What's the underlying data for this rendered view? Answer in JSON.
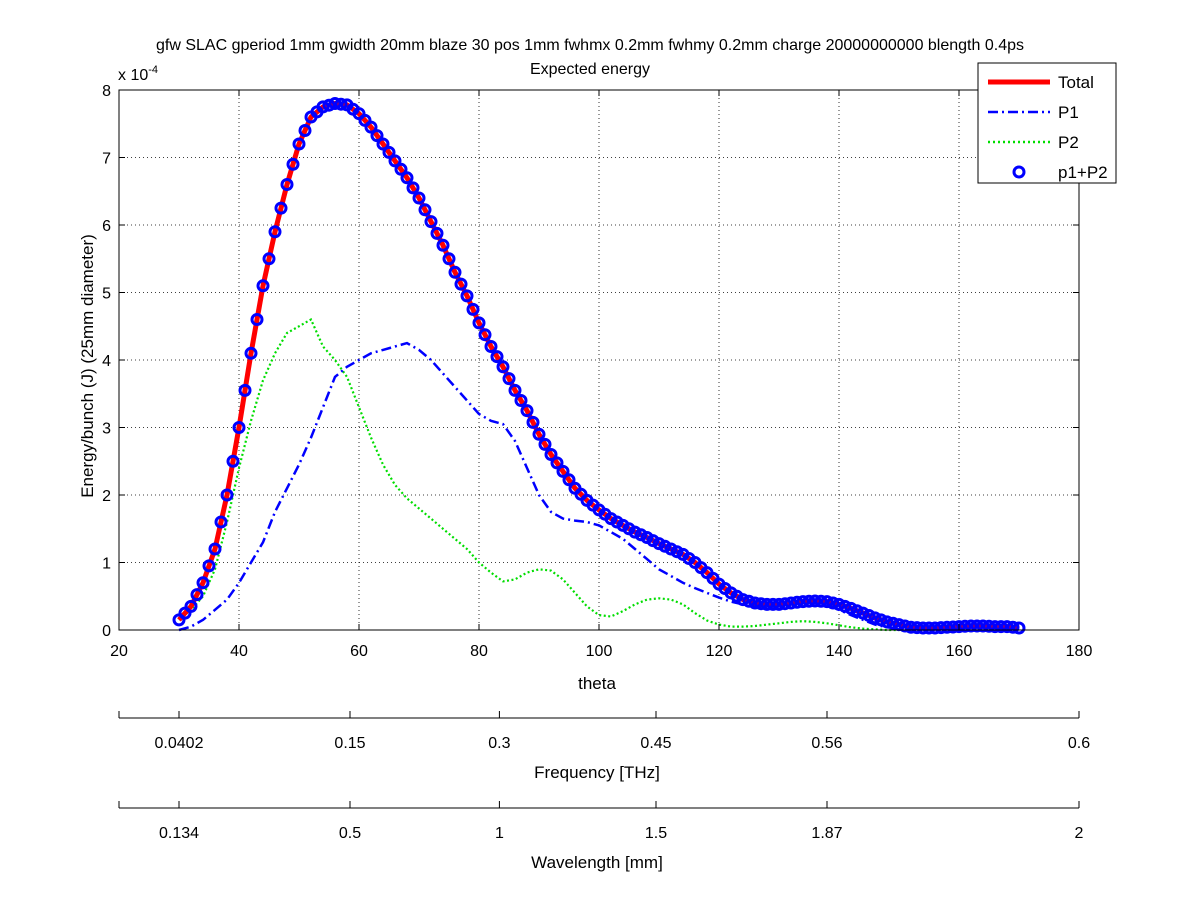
{
  "chart_data": {
    "type": "line",
    "title": "gfw SLAC gperiod 1mm gwidth 20mm blaze 30 pos 1mm fwhmx 0.2mm fwhmy 0.2mm charge 20000000000 blength 0.4ps",
    "subtitle": "Expected energy",
    "xlabel": "theta",
    "ylabel": "Energy/bunch (J) (25mm diameter)",
    "y_exponent_label": "x 10",
    "y_exponent_power": "-4",
    "xlim": [
      20,
      180
    ],
    "ylim": [
      0,
      8
    ],
    "y_scale": 0.0001,
    "grid": true,
    "legend_position": "top-right",
    "x_ticks": [
      20,
      40,
      60,
      80,
      100,
      120,
      140,
      160,
      180
    ],
    "y_ticks": [
      0,
      1,
      2,
      3,
      4,
      5,
      6,
      7,
      8
    ],
    "x_tick_labels": [
      "20",
      "40",
      "60",
      "80",
      "100",
      "120",
      "140",
      "160",
      "180"
    ],
    "y_tick_labels": [
      "0",
      "1",
      "2",
      "3",
      "4",
      "5",
      "6",
      "7",
      "8"
    ],
    "series": [
      {
        "name": "Total",
        "color": "#ff0000",
        "style": "solid",
        "x": [
          30,
          32,
          34,
          36,
          38,
          40,
          42,
          44,
          46,
          48,
          50,
          52,
          54,
          56,
          58,
          60,
          62,
          64,
          66,
          68,
          70,
          72,
          74,
          76,
          78,
          80,
          82,
          84,
          86,
          88,
          90,
          92,
          94,
          96,
          98,
          100,
          102,
          104,
          106,
          108,
          110,
          112,
          114,
          116,
          118,
          120,
          122,
          124,
          126,
          128,
          130,
          132,
          134,
          136,
          138,
          140,
          142,
          144,
          146,
          148,
          150,
          152,
          154,
          156,
          158,
          160,
          162,
          164,
          166,
          168,
          170
        ],
        "y": [
          0.15,
          0.35,
          0.7,
          1.2,
          2.0,
          3.0,
          4.1,
          5.1,
          5.9,
          6.6,
          7.2,
          7.6,
          7.75,
          7.8,
          7.78,
          7.65,
          7.45,
          7.2,
          6.95,
          6.7,
          6.4,
          6.05,
          5.7,
          5.3,
          4.95,
          4.55,
          4.2,
          3.9,
          3.55,
          3.25,
          2.9,
          2.6,
          2.35,
          2.1,
          1.92,
          1.78,
          1.65,
          1.55,
          1.45,
          1.37,
          1.28,
          1.2,
          1.12,
          1.0,
          0.85,
          0.68,
          0.55,
          0.45,
          0.4,
          0.38,
          0.38,
          0.4,
          0.42,
          0.43,
          0.42,
          0.38,
          0.32,
          0.25,
          0.18,
          0.12,
          0.08,
          0.04,
          0.03,
          0.03,
          0.04,
          0.05,
          0.06,
          0.06,
          0.05,
          0.05,
          0.03
        ]
      },
      {
        "name": "P1",
        "color": "#0000ff",
        "style": "dashdot",
        "x": [
          30,
          32,
          34,
          36,
          38,
          40,
          42,
          44,
          46,
          48,
          50,
          52,
          54,
          56,
          58,
          60,
          62,
          64,
          66,
          68,
          70,
          72,
          74,
          76,
          78,
          80,
          82,
          84,
          86,
          88,
          90,
          92,
          94,
          96,
          98,
          100,
          102,
          104,
          106,
          108,
          110,
          112,
          114,
          116,
          118,
          120,
          122,
          124,
          126,
          128,
          130,
          132,
          134,
          136,
          138,
          140,
          142,
          144,
          146,
          148,
          150,
          152
        ],
        "y": [
          0.0,
          0.05,
          0.15,
          0.3,
          0.45,
          0.7,
          1.0,
          1.3,
          1.75,
          2.1,
          2.45,
          2.85,
          3.3,
          3.75,
          3.9,
          4.0,
          4.1,
          4.15,
          4.2,
          4.25,
          4.15,
          4.0,
          3.8,
          3.6,
          3.4,
          3.2,
          3.1,
          3.05,
          2.8,
          2.4,
          2.0,
          1.75,
          1.65,
          1.62,
          1.6,
          1.55,
          1.45,
          1.35,
          1.2,
          1.05,
          0.9,
          0.8,
          0.7,
          0.62,
          0.55,
          0.48,
          0.42,
          0.38,
          0.35,
          0.34,
          0.35,
          0.38,
          0.4,
          0.4,
          0.38,
          0.3,
          0.22,
          0.15,
          0.08,
          0.04,
          0.02,
          0.0
        ]
      },
      {
        "name": "P2",
        "color": "#00dd00",
        "style": "dotted",
        "x": [
          30,
          32,
          34,
          36,
          38,
          40,
          42,
          44,
          46,
          48,
          50,
          52,
          54,
          56,
          58,
          60,
          62,
          64,
          66,
          68,
          70,
          72,
          74,
          76,
          78,
          80,
          82,
          84,
          86,
          88,
          90,
          92,
          94,
          96,
          98,
          100,
          102,
          104,
          106,
          108,
          110,
          112,
          114,
          116,
          118,
          120,
          122,
          124,
          126,
          128,
          130,
          132,
          134,
          136,
          138,
          140,
          142,
          144,
          146,
          148,
          150
        ],
        "y": [
          0.15,
          0.3,
          0.5,
          0.9,
          1.6,
          2.4,
          3.1,
          3.7,
          4.1,
          4.4,
          4.5,
          4.6,
          4.2,
          4.0,
          3.75,
          3.3,
          2.85,
          2.45,
          2.15,
          1.95,
          1.8,
          1.65,
          1.5,
          1.35,
          1.2,
          1.0,
          0.85,
          0.72,
          0.75,
          0.85,
          0.9,
          0.88,
          0.75,
          0.55,
          0.35,
          0.22,
          0.2,
          0.28,
          0.38,
          0.45,
          0.47,
          0.45,
          0.38,
          0.25,
          0.14,
          0.08,
          0.05,
          0.05,
          0.06,
          0.08,
          0.1,
          0.12,
          0.13,
          0.12,
          0.1,
          0.07,
          0.04,
          0.02,
          0.01,
          0.0,
          0.0
        ]
      },
      {
        "name": "p1+P2",
        "color": "#0000ff",
        "style": "markers",
        "marker": "circle",
        "from_series": "Total",
        "x_start": 30,
        "x_end": 170,
        "x_step": 1
      }
    ],
    "secondary_axes": [
      {
        "label": "Frequency [THz]",
        "ticks_theta": [
          20,
          30,
          58.5,
          83.4,
          109.5,
          138.0,
          180
        ],
        "tick_labels": [
          "",
          "0.0402",
          "0.15",
          "0.3",
          "0.45",
          "0.56",
          "0.6"
        ]
      },
      {
        "label": "Wavelength [mm]",
        "ticks_theta": [
          20,
          30,
          58.5,
          83.4,
          109.5,
          138.0,
          180
        ],
        "tick_labels": [
          "",
          "0.134",
          "0.5",
          "1",
          "1.5",
          "1.87",
          "2"
        ]
      }
    ]
  }
}
